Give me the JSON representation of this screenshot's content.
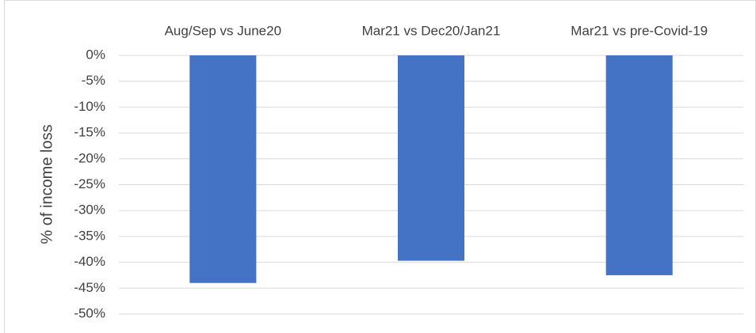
{
  "chart_data": {
    "type": "bar",
    "y_label": "% of income loss",
    "categories": [
      "Aug/Sep vs June20",
      "Mar21 vs Dec20/Jan21",
      "Mar21 vs pre-Covid-19"
    ],
    "values": [
      -44,
      -39.7,
      -42.5
    ],
    "color": "#4472c4",
    "ylim": [
      -50,
      0
    ],
    "yticks": [
      {
        "value": 0,
        "label": "0%"
      },
      {
        "value": -5,
        "label": "-5%"
      },
      {
        "value": -10,
        "label": "-10%"
      },
      {
        "value": -15,
        "label": "-15%"
      },
      {
        "value": -20,
        "label": "-20%"
      },
      {
        "value": -25,
        "label": "-25%"
      },
      {
        "value": -30,
        "label": "-30%"
      },
      {
        "value": -35,
        "label": "-35%"
      },
      {
        "value": -40,
        "label": "-40%"
      },
      {
        "value": -45,
        "label": "-45%"
      },
      {
        "value": -50,
        "label": "-50%"
      }
    ],
    "grid": true
  }
}
